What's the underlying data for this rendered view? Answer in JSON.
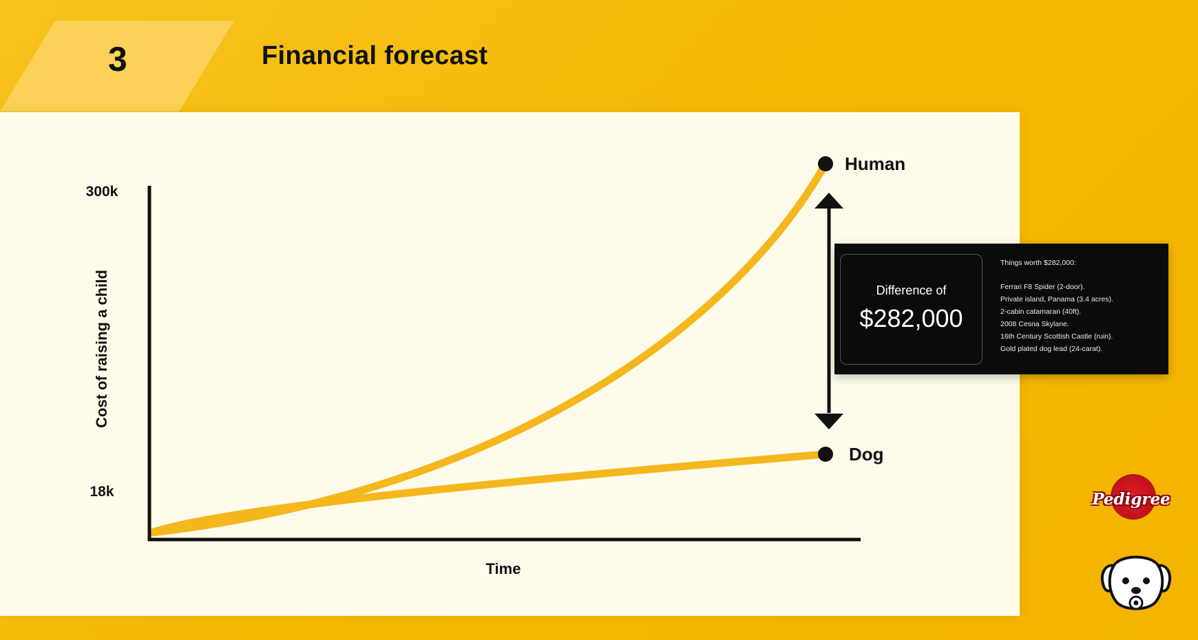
{
  "header": {
    "section_number": "3",
    "title": "Financial forecast"
  },
  "chart_data": {
    "type": "line",
    "title": "",
    "xlabel": "Time",
    "ylabel": "Cost of raising a child",
    "y_tick_labels": [
      "300k",
      "18k"
    ],
    "series": [
      {
        "name": "Human",
        "color": "#f4b71d",
        "curve": "exponential",
        "end_value": 300000
      },
      {
        "name": "Dog",
        "color": "#f4b71d",
        "curve": "linear",
        "end_value": 18000
      }
    ],
    "annotation": "difference-arrow",
    "grid": false,
    "legend": "end-labels"
  },
  "callout": {
    "difference_label": "Difference of",
    "difference_value": "$282,000",
    "list_title": "Things worth $282,000:",
    "items": [
      "Ferrari F8 Spider (2-door).",
      "Private island, Panama (3.4 acres).",
      "2-cabin catamaran (40ft).",
      "2008 Cesna Skylane.",
      "16th Century Scottish Castle (ruin).",
      "Gold plated dog lead (24-carat)."
    ]
  },
  "brand": {
    "logo_text": "Pedigree",
    "logo_color": "#d7141e",
    "dog_icon": "dog-face-pacifier-icon"
  }
}
